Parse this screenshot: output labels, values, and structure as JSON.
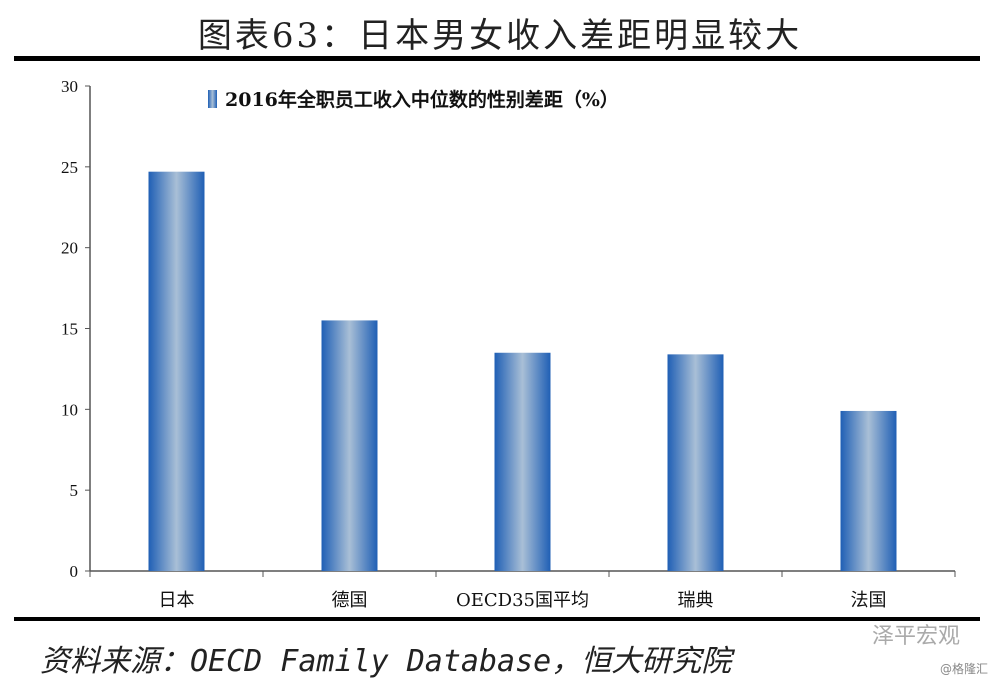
{
  "title": "图表63：日本男女收入差距明显较大",
  "source": "资料来源：OECD Family Database，恒大研究院",
  "watermark": {
    "brand": "泽平宏观",
    "handle": "@格隆汇"
  },
  "chart_data": {
    "type": "bar",
    "title": "",
    "legend": "2016年全职员工收入中位数的性别差距（%）",
    "legend_position": "top",
    "categories": [
      "日本",
      "德国",
      "OECD35国平均",
      "瑞典",
      "法国"
    ],
    "values": [
      24.7,
      15.5,
      13.5,
      13.4,
      9.9
    ],
    "ylim": [
      0,
      30
    ],
    "yticks": [
      0,
      5,
      10,
      15,
      20,
      25,
      30
    ],
    "xlabel": "",
    "ylabel": "",
    "grid": false,
    "bar_color": "#2a6fc0"
  }
}
